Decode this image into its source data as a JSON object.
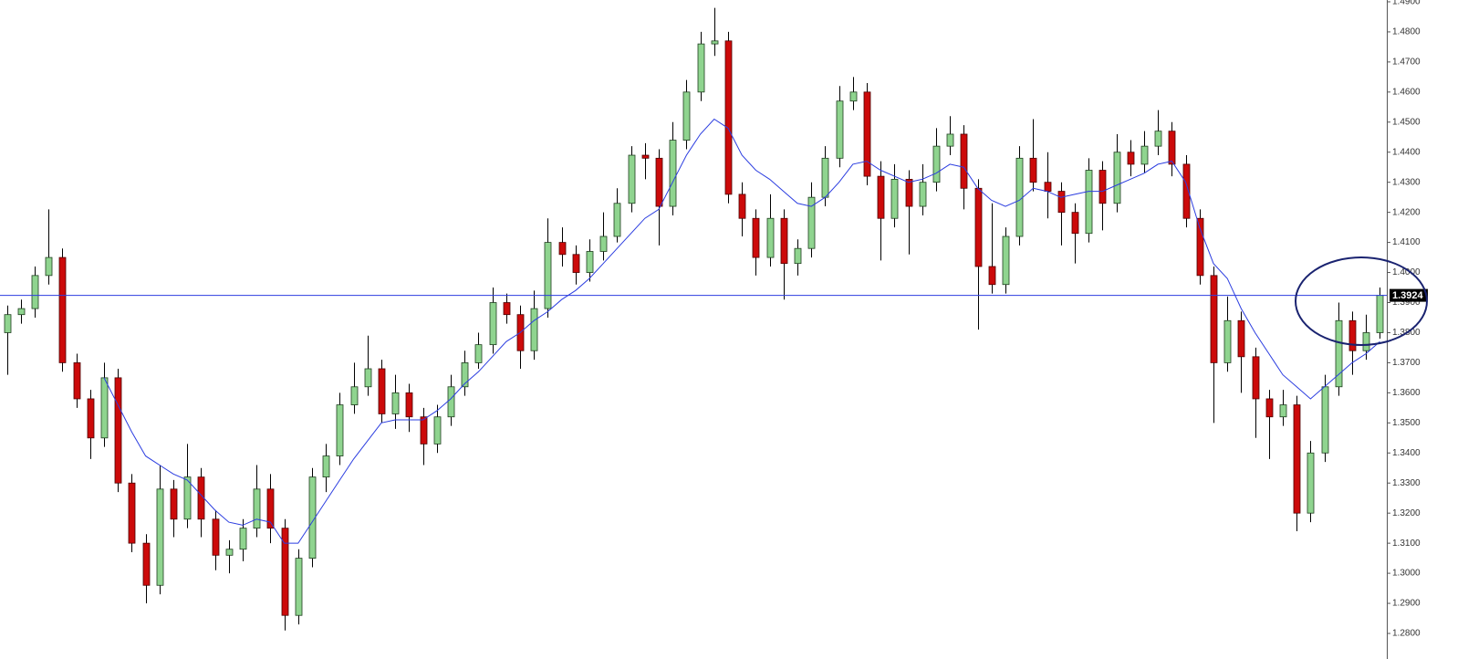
{
  "chart_data": {
    "type": "candlestick",
    "up_color": "#8fd48f",
    "down_color": "#cc0a0a",
    "open": [
      1.38,
      1.386,
      1.388,
      1.399,
      1.405,
      1.37,
      1.358,
      1.345,
      1.365,
      1.33,
      1.31,
      1.296,
      1.328,
      1.318,
      1.332,
      1.318,
      1.306,
      1.308,
      1.315,
      1.328,
      1.315,
      1.286,
      1.305,
      1.332,
      1.339,
      1.356,
      1.362,
      1.368,
      1.353,
      1.36,
      1.352,
      1.343,
      1.352,
      1.362,
      1.37,
      1.376,
      1.39,
      1.386,
      1.374,
      1.388,
      1.41,
      1.406,
      1.4,
      1.407,
      1.412,
      1.423,
      1.439,
      1.438,
      1.422,
      1.444,
      1.46,
      1.476,
      1.477,
      1.426,
      1.418,
      1.405,
      1.418,
      1.403,
      1.408,
      1.425,
      1.438,
      1.457,
      1.46,
      1.432,
      1.418,
      1.431,
      1.422,
      1.43,
      1.442,
      1.446,
      1.428,
      1.402,
      1.396,
      1.412,
      1.438,
      1.43,
      1.427,
      1.42,
      1.413,
      1.434,
      1.423,
      1.44,
      1.436,
      1.442,
      1.447,
      1.436,
      1.418,
      1.399,
      1.37,
      1.384,
      1.372,
      1.358,
      1.352,
      1.356,
      1.32,
      1.34,
      1.362,
      1.384,
      1.374,
      1.38
    ],
    "high": [
      1.389,
      1.391,
      1.402,
      1.421,
      1.408,
      1.373,
      1.361,
      1.37,
      1.368,
      1.333,
      1.313,
      1.336,
      1.331,
      1.343,
      1.335,
      1.321,
      1.311,
      1.318,
      1.336,
      1.333,
      1.318,
      1.308,
      1.335,
      1.343,
      1.36,
      1.37,
      1.379,
      1.371,
      1.366,
      1.363,
      1.355,
      1.356,
      1.366,
      1.374,
      1.38,
      1.395,
      1.393,
      1.389,
      1.394,
      1.418,
      1.415,
      1.409,
      1.411,
      1.42,
      1.428,
      1.442,
      1.443,
      1.441,
      1.45,
      1.464,
      1.48,
      1.488,
      1.48,
      1.43,
      1.421,
      1.426,
      1.421,
      1.411,
      1.43,
      1.442,
      1.462,
      1.465,
      1.463,
      1.437,
      1.436,
      1.434,
      1.436,
      1.448,
      1.452,
      1.449,
      1.431,
      1.423,
      1.415,
      1.442,
      1.451,
      1.44,
      1.43,
      1.423,
      1.438,
      1.437,
      1.446,
      1.444,
      1.447,
      1.454,
      1.45,
      1.439,
      1.421,
      1.402,
      1.392,
      1.387,
      1.375,
      1.361,
      1.361,
      1.359,
      1.344,
      1.366,
      1.39,
      1.387,
      1.386,
      1.395
    ],
    "low": [
      1.366,
      1.383,
      1.385,
      1.396,
      1.367,
      1.355,
      1.338,
      1.342,
      1.327,
      1.307,
      1.29,
      1.293,
      1.312,
      1.315,
      1.312,
      1.301,
      1.3,
      1.304,
      1.312,
      1.31,
      1.281,
      1.283,
      1.302,
      1.327,
      1.336,
      1.353,
      1.359,
      1.35,
      1.348,
      1.347,
      1.336,
      1.34,
      1.349,
      1.359,
      1.368,
      1.373,
      1.383,
      1.368,
      1.371,
      1.385,
      1.402,
      1.396,
      1.397,
      1.404,
      1.41,
      1.42,
      1.431,
      1.409,
      1.419,
      1.441,
      1.457,
      1.472,
      1.423,
      1.412,
      1.399,
      1.402,
      1.391,
      1.399,
      1.405,
      1.422,
      1.435,
      1.454,
      1.429,
      1.404,
      1.415,
      1.406,
      1.419,
      1.427,
      1.439,
      1.421,
      1.381,
      1.393,
      1.393,
      1.409,
      1.427,
      1.418,
      1.409,
      1.403,
      1.41,
      1.414,
      1.42,
      1.432,
      1.433,
      1.439,
      1.432,
      1.415,
      1.396,
      1.35,
      1.367,
      1.36,
      1.345,
      1.338,
      1.349,
      1.314,
      1.317,
      1.337,
      1.359,
      1.366,
      1.371,
      1.378
    ],
    "close": [
      1.386,
      1.388,
      1.399,
      1.405,
      1.37,
      1.358,
      1.345,
      1.365,
      1.33,
      1.31,
      1.296,
      1.328,
      1.318,
      1.332,
      1.318,
      1.306,
      1.308,
      1.315,
      1.328,
      1.315,
      1.286,
      1.305,
      1.332,
      1.339,
      1.356,
      1.362,
      1.368,
      1.353,
      1.36,
      1.352,
      1.343,
      1.352,
      1.362,
      1.37,
      1.376,
      1.39,
      1.386,
      1.374,
      1.388,
      1.41,
      1.406,
      1.4,
      1.407,
      1.412,
      1.423,
      1.439,
      1.438,
      1.422,
      1.444,
      1.46,
      1.476,
      1.477,
      1.426,
      1.418,
      1.405,
      1.418,
      1.403,
      1.408,
      1.425,
      1.438,
      1.457,
      1.46,
      1.432,
      1.418,
      1.431,
      1.422,
      1.43,
      1.442,
      1.446,
      1.428,
      1.402,
      1.396,
      1.412,
      1.438,
      1.43,
      1.427,
      1.42,
      1.413,
      1.434,
      1.423,
      1.44,
      1.436,
      1.442,
      1.447,
      1.436,
      1.418,
      1.399,
      1.37,
      1.384,
      1.372,
      1.358,
      1.352,
      1.356,
      1.32,
      1.34,
      1.362,
      1.384,
      1.374,
      1.38,
      1.3924
    ],
    "ma": {
      "color": "#2b3de0",
      "values": [
        null,
        null,
        null,
        null,
        null,
        null,
        null,
        1.365,
        1.356,
        1.347,
        1.339,
        1.336,
        1.333,
        1.331,
        1.326,
        1.321,
        1.317,
        1.316,
        1.318,
        1.317,
        1.31,
        1.31,
        1.317,
        1.324,
        1.331,
        1.338,
        1.344,
        1.35,
        1.351,
        1.351,
        1.351,
        1.354,
        1.358,
        1.363,
        1.367,
        1.372,
        1.377,
        1.38,
        1.384,
        1.387,
        1.391,
        1.394,
        1.398,
        1.403,
        1.408,
        1.413,
        1.418,
        1.421,
        1.43,
        1.439,
        1.446,
        1.451,
        1.448,
        1.439,
        1.434,
        1.431,
        1.427,
        1.423,
        1.422,
        1.425,
        1.43,
        1.436,
        1.437,
        1.434,
        1.432,
        1.43,
        1.431,
        1.433,
        1.436,
        1.435,
        1.428,
        1.424,
        1.422,
        1.424,
        1.428,
        1.427,
        1.425,
        1.426,
        1.427,
        1.427,
        1.429,
        1.431,
        1.433,
        1.436,
        1.437,
        1.43,
        1.415,
        1.403,
        1.398,
        1.388,
        1.38,
        1.373,
        1.366,
        1.362,
        1.358,
        1.362,
        1.366,
        1.37,
        1.373,
        1.377
      ]
    },
    "price_line": {
      "value": 1.3924,
      "label": "1.3924",
      "color": "#2b3de0"
    },
    "ylim": [
      1.2715,
      1.4906
    ],
    "yticks": [
      {
        "value": 1.28,
        "label": "1.2800"
      },
      {
        "value": 1.29,
        "label": "1.2900"
      },
      {
        "value": 1.3,
        "label": "1.3000"
      },
      {
        "value": 1.31,
        "label": "1.3100"
      },
      {
        "value": 1.32,
        "label": "1.3200"
      },
      {
        "value": 1.33,
        "label": "1.3300"
      },
      {
        "value": 1.34,
        "label": "1.3400"
      },
      {
        "value": 1.35,
        "label": "1.3500"
      },
      {
        "value": 1.36,
        "label": "1.3600"
      },
      {
        "value": 1.37,
        "label": "1.3700"
      },
      {
        "value": 1.38,
        "label": "1.3800"
      },
      {
        "value": 1.39,
        "label": "1.3900"
      },
      {
        "value": 1.4,
        "label": "1.4000"
      },
      {
        "value": 1.41,
        "label": "1.4100"
      },
      {
        "value": 1.42,
        "label": "1.4200"
      },
      {
        "value": 1.43,
        "label": "1.4300"
      },
      {
        "value": 1.44,
        "label": "1.4400"
      },
      {
        "value": 1.45,
        "label": "1.4500"
      },
      {
        "value": 1.46,
        "label": "1.4600"
      },
      {
        "value": 1.47,
        "label": "1.4700"
      },
      {
        "value": 1.48,
        "label": "1.4800"
      },
      {
        "value": 1.49,
        "label": "1.4900"
      }
    ],
    "grid": false
  }
}
